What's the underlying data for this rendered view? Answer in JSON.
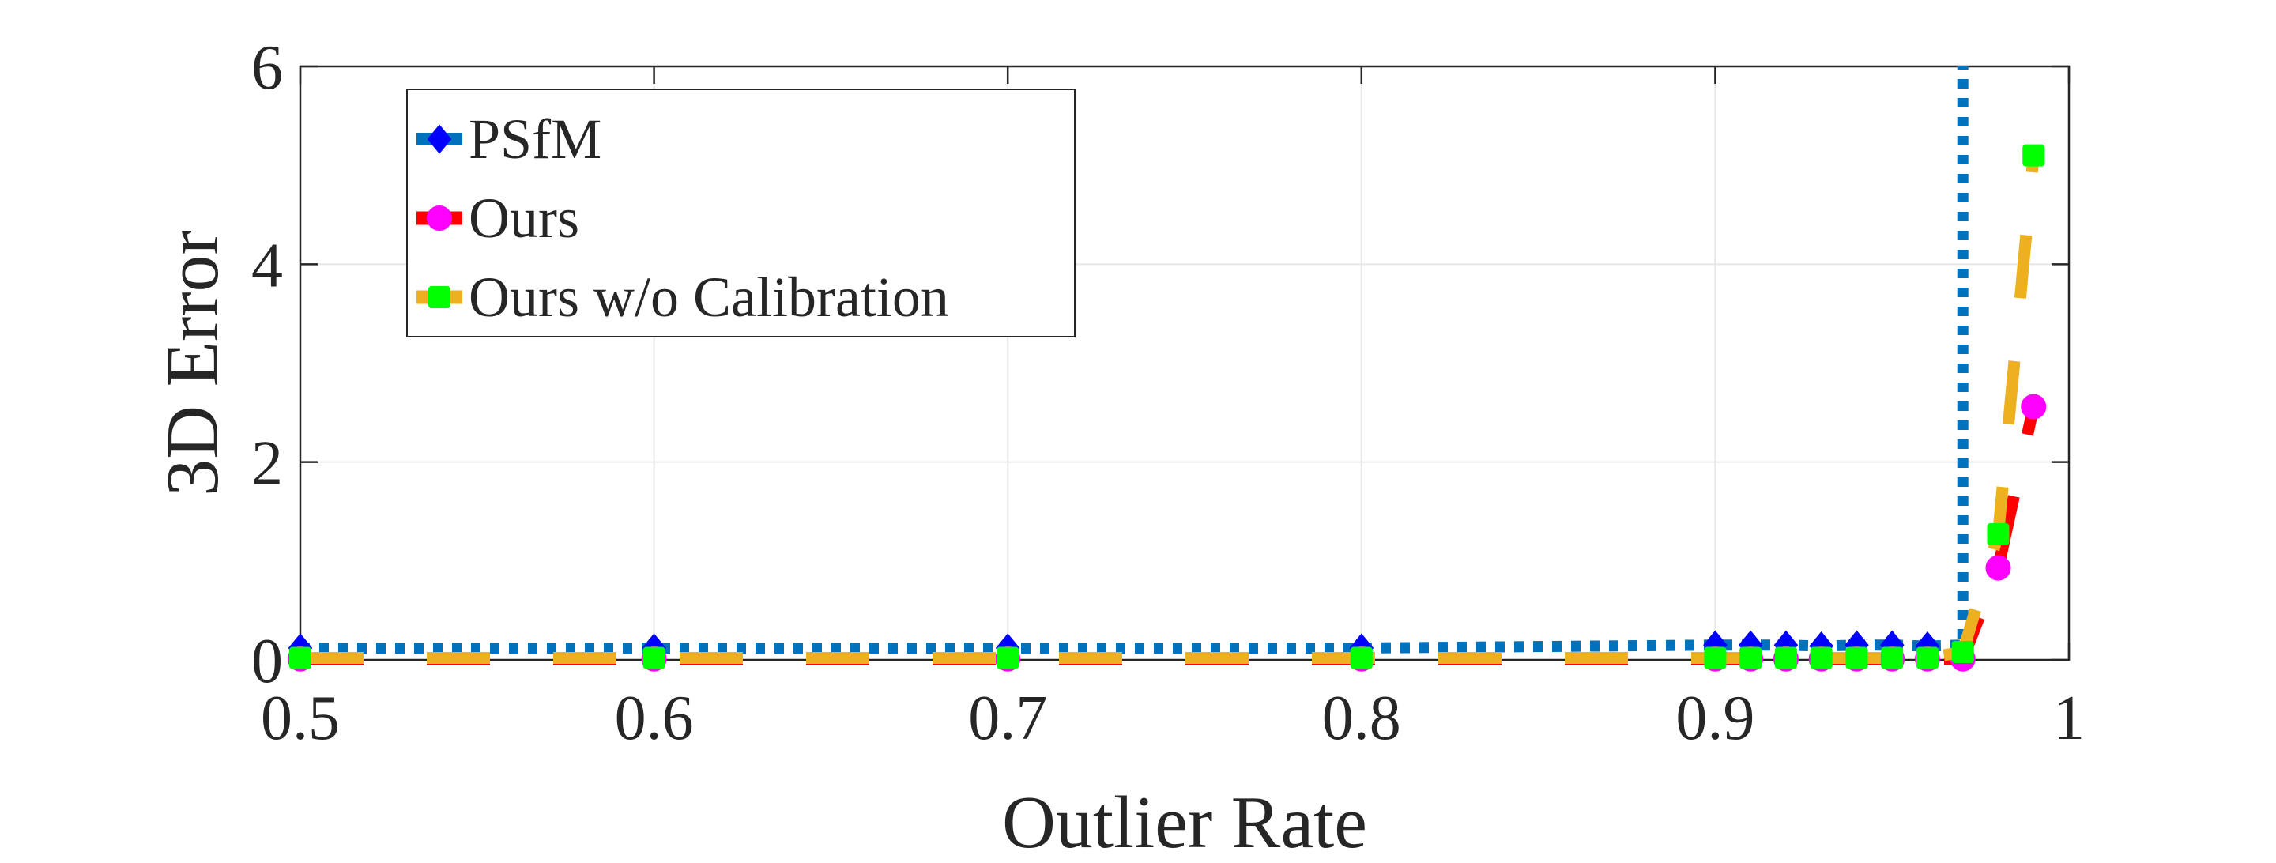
{
  "chart_data": {
    "type": "line",
    "xlabel": "Outlier Rate",
    "ylabel": "3D Error",
    "xlim": [
      0.5,
      1
    ],
    "ylim": [
      0,
      6
    ],
    "xticks": [
      0.5,
      0.6,
      0.7,
      0.8,
      0.9,
      1
    ],
    "xtick_labels": [
      "0.5",
      "0.6",
      "0.7",
      "0.8",
      "0.9",
      "1"
    ],
    "yticks": [
      0,
      2,
      4,
      6
    ],
    "ytick_labels": [
      "0",
      "2",
      "4",
      "6"
    ],
    "grid": true,
    "legend_position": "top-left",
    "series": [
      {
        "name": "PSfM",
        "line_color": "#0072BD",
        "marker_color": "#0000FF",
        "line_style": "dotted",
        "marker": "diamond",
        "x": [
          0.5,
          0.6,
          0.7,
          0.8,
          0.9,
          0.91,
          0.92,
          0.93,
          0.94,
          0.95,
          0.96,
          0.97,
          0.97
        ],
        "y": [
          0.12,
          0.12,
          0.12,
          0.12,
          0.15,
          0.15,
          0.15,
          0.14,
          0.15,
          0.15,
          0.14,
          0.15,
          6
        ],
        "marker_count": 11
      },
      {
        "name": "Ours",
        "line_color": "#FF0000",
        "marker_color": "#FF00FF",
        "line_style": "dashed",
        "marker": "circle",
        "x": [
          0.5,
          0.6,
          0.7,
          0.8,
          0.9,
          0.91,
          0.92,
          0.93,
          0.94,
          0.95,
          0.96,
          0.97,
          0.98,
          0.99
        ],
        "y": [
          0.01,
          0.01,
          0.01,
          0.01,
          0.01,
          0.01,
          0.01,
          0.01,
          0.01,
          0.01,
          0.01,
          0.01,
          0.93,
          2.56
        ],
        "marker_count": 14
      },
      {
        "name": "Ours w/o Calibration",
        "line_color": "#EDB120",
        "marker_color": "#00FF00",
        "line_style": "dashed",
        "marker": "square",
        "x": [
          0.5,
          0.6,
          0.7,
          0.8,
          0.9,
          0.91,
          0.92,
          0.93,
          0.94,
          0.95,
          0.96,
          0.97,
          0.98,
          0.99
        ],
        "y": [
          0.02,
          0.02,
          0.02,
          0.02,
          0.02,
          0.02,
          0.02,
          0.02,
          0.02,
          0.02,
          0.02,
          0.08,
          1.27,
          5.1
        ],
        "marker_count": 14
      }
    ]
  }
}
